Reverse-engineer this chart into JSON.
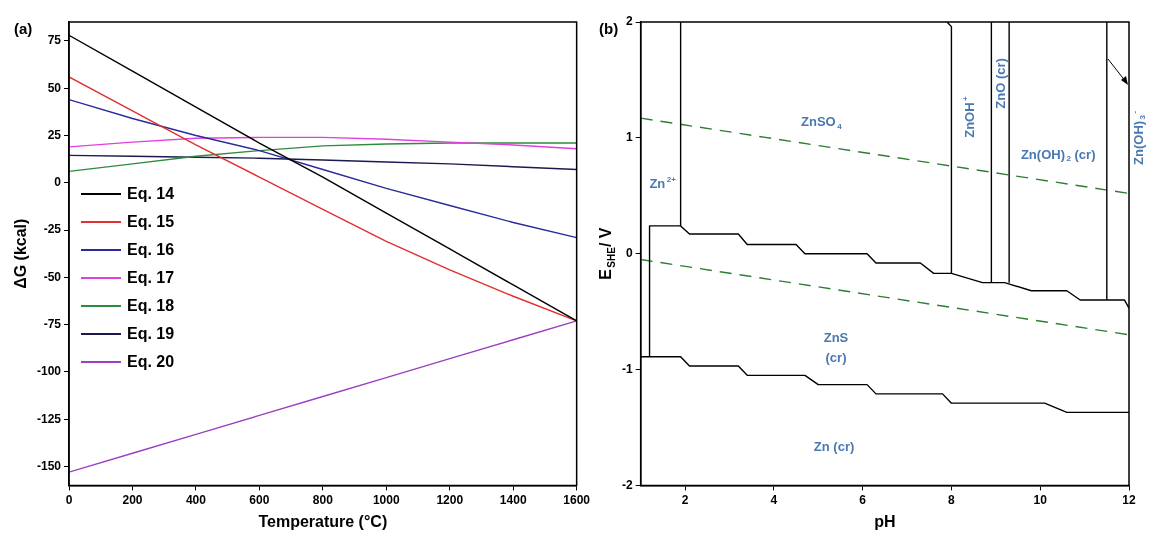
{
  "chart_data": [
    {
      "type": "line",
      "title": "(a)",
      "xlabel": "Temperature (°C)",
      "ylabel": "ΔG (kcal)",
      "x": [
        0,
        200,
        400,
        600,
        800,
        1000,
        1200,
        1400,
        1600
      ],
      "xlim": [
        0,
        1600
      ],
      "xticks": [
        0,
        200,
        400,
        600,
        800,
        1000,
        1200,
        1400,
        1600
      ],
      "ylim": [
        -160,
        85
      ],
      "yticks": [
        -150,
        -125,
        -100,
        -75,
        -50,
        -25,
        0,
        25,
        50,
        75
      ],
      "grid": false,
      "legend": "left",
      "marker": "none",
      "line_style": "solid",
      "series": [
        {
          "name": "Eq. 14",
          "color": "#000000",
          "values": [
            78,
            59,
            40,
            21,
            3,
            -16,
            -35,
            -54,
            -73
          ]
        },
        {
          "name": "Eq. 15",
          "color": "#e03030",
          "values": [
            56,
            38,
            20,
            3,
            -14,
            -31,
            -46,
            -60,
            -73
          ]
        },
        {
          "name": "Eq. 16",
          "color": "#2a2a9a",
          "values": [
            44,
            34,
            25,
            17,
            7,
            -3,
            -12,
            -21,
            -29
          ]
        },
        {
          "name": "Eq. 17",
          "color": "#e040e0",
          "values": [
            19,
            21.5,
            23.5,
            24,
            24,
            23,
            21.5,
            20,
            18
          ]
        },
        {
          "name": "Eq. 18",
          "color": "#2e8b3e",
          "values": [
            6,
            10,
            14,
            17,
            19.5,
            20.5,
            21,
            21,
            21
          ]
        },
        {
          "name": "Eq. 19",
          "color": "#1a1a50",
          "values": [
            14.5,
            14,
            13.5,
            13,
            12,
            11,
            10,
            8.5,
            7
          ]
        },
        {
          "name": "Eq. 20",
          "color": "#9a40c0",
          "values": [
            -153,
            -143,
            -133,
            -123,
            -113,
            -103,
            -93,
            -83,
            -73
          ]
        }
      ]
    },
    {
      "type": "line",
      "title": "(b)",
      "xlabel": "pH",
      "ylabel": "E$_{SHE}$/ V",
      "xlim": [
        1,
        12
      ],
      "xticks": [
        2,
        4,
        6,
        8,
        10,
        12
      ],
      "ylim": [
        -2,
        2
      ],
      "yticks": [
        -2,
        -1,
        0,
        1,
        2
      ],
      "grid": false,
      "marker": "none",
      "series": [
        {
          "color": "#000000",
          "line_style": "solid",
          "x": [
            1.2,
            1.2,
            1.9,
            2.1,
            3.2,
            3.4,
            4.5,
            4.7,
            6.1,
            6.3,
            7.3,
            7.6,
            8,
            8.7,
            9.2,
            9.8,
            10.6,
            10.9,
            11.9,
            12
          ],
          "values": [
            -0.89,
            0.24,
            0.24,
            0.17,
            0.17,
            0.08,
            0.08,
            0,
            0,
            -0.08,
            -0.08,
            -0.17,
            -0.17,
            -0.25,
            -0.25,
            -0.32,
            -0.32,
            -0.4,
            -0.4,
            -0.47
          ]
        },
        {
          "color": "#000000",
          "line_style": "solid",
          "x": [
            1,
            1.9,
            2.1,
            3.2,
            3.4,
            4.7,
            5,
            6.1,
            6.3,
            7.8,
            8,
            10.1,
            10.6,
            12
          ],
          "values": [
            -0.89,
            -0.89,
            -0.97,
            -0.97,
            -1.05,
            -1.05,
            -1.13,
            -1.13,
            -1.21,
            -1.21,
            -1.29,
            -1.29,
            -1.37,
            -1.37
          ]
        },
        {
          "color": "#000000",
          "line_style": "solid",
          "x": [
            1.9,
            1.9
          ],
          "values": [
            0.24,
            2
          ]
        },
        {
          "color": "#000000",
          "line_style": "solid",
          "x": [
            8,
            8,
            7.9
          ],
          "values": [
            -0.17,
            1.96,
            2
          ]
        },
        {
          "color": "#000000",
          "line_style": "solid",
          "x": [
            8.9,
            8.9
          ],
          "values": [
            -0.25,
            2
          ]
        },
        {
          "color": "#000000",
          "line_style": "solid",
          "x": [
            9.3,
            9.3
          ],
          "values": [
            -0.25,
            2
          ]
        },
        {
          "color": "#000000",
          "line_style": "solid",
          "x": [
            11.5,
            11.5
          ],
          "values": [
            -0.4,
            2
          ]
        },
        {
          "color": "#2e7d32",
          "line_style": "dashed",
          "x": [
            1,
            12
          ],
          "values": [
            1.17,
            0.52
          ]
        },
        {
          "color": "#2e7d32",
          "line_style": "dashed",
          "x": [
            1,
            12
          ],
          "values": [
            -0.05,
            -0.7
          ]
        }
      ],
      "annotations": [
        "ZnSO$_{4}$",
        "Zn$^{2+}$",
        "ZnOH$^{+}$",
        "ZnO (cr)",
        "Zn(OH)$_{2}$ (cr)",
        "ZnS\n(cr)",
        "Zn (cr)",
        "Zn(OH)$_{3}$$^{-}$"
      ]
    }
  ]
}
